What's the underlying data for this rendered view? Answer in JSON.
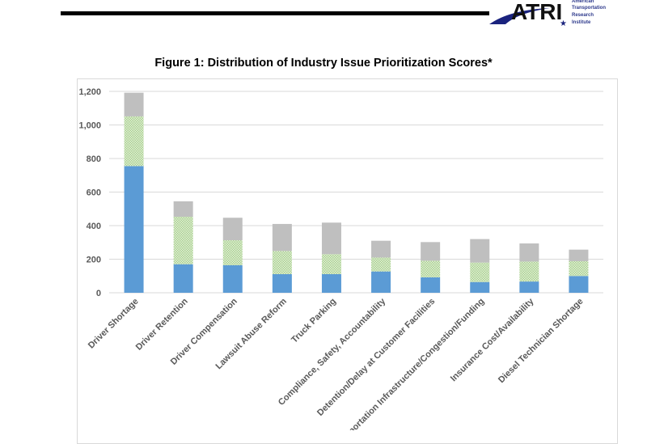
{
  "header": {
    "logo_text": "ATRI",
    "logo_subtext": [
      "American",
      "Transportation",
      "Research",
      "Institute"
    ]
  },
  "colors": {
    "blue": "#5b9bd5",
    "green_pattern": "#a9d18e",
    "grey": "#bfbfbf",
    "grid": "#d9d9d9"
  },
  "chart_data": {
    "type": "bar",
    "stacked": true,
    "title": "Figure 1: Distribution of Industry Issue Prioritization Scores*",
    "xlabel": "",
    "ylabel": "",
    "ylim": [
      0,
      1200
    ],
    "yticks": [
      "0",
      "200",
      "400",
      "600",
      "800",
      "1,000",
      "1,200"
    ],
    "ytick_values": [
      0,
      200,
      400,
      600,
      800,
      1000,
      1200
    ],
    "grid": true,
    "legend": "none",
    "categories": [
      "Driver Shortage",
      "Driver Retention",
      "Driver Compensation",
      "Lawsuit Abuse Reform",
      "Truck Parking",
      "Compliance, Safety, Accountability",
      "Detention/Delay at Customer Facilities",
      "Transportation Infrastructure/Congestion/Funding",
      "Insurance Cost/Availability",
      "Diesel Technician Shortage"
    ],
    "series": [
      {
        "color": "#5b9bd5",
        "values": [
          755,
          170,
          164,
          111,
          111,
          127,
          92,
          64,
          67,
          100
        ]
      },
      {
        "color": "#a9d18e",
        "pattern": "dotted",
        "values": [
          296,
          283,
          149,
          138,
          119,
          83,
          99,
          116,
          119,
          88
        ]
      },
      {
        "color": "#bfbfbf",
        "values": [
          141,
          92,
          134,
          161,
          188,
          100,
          111,
          140,
          108,
          69
        ]
      }
    ]
  }
}
